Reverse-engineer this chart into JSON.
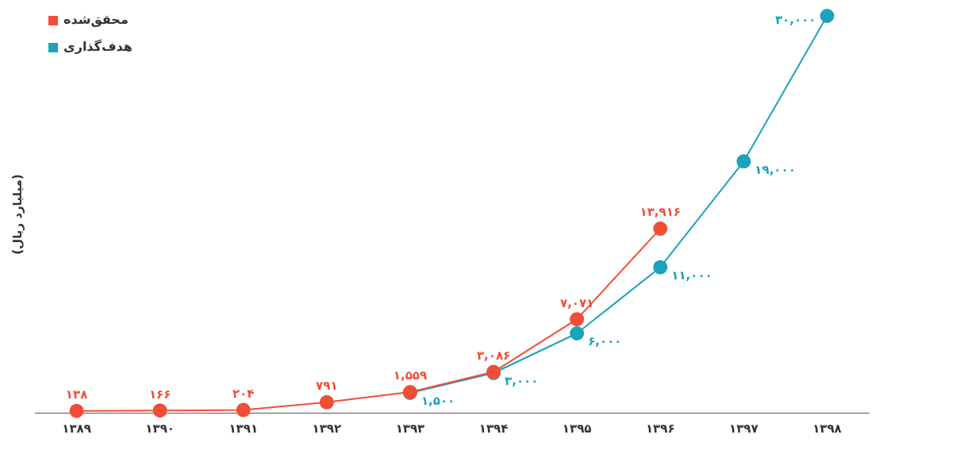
{
  "chart_data": {
    "type": "line",
    "ylabel": "(میلیارد ریال)",
    "categories": [
      "۱۳۸۹",
      "۱۳۹۰",
      "۱۳۹۱",
      "۱۳۹۲",
      "۱۳۹۳",
      "۱۳۹۴",
      "۱۳۹۵",
      "۱۳۹۶",
      "۱۳۹۷",
      "۱۳۹۸"
    ],
    "series": [
      {
        "name": "محقق‌شده",
        "color": "#f04e37",
        "values": [
          138,
          166,
          204,
          791,
          1559,
          3086,
          7071,
          13916,
          null,
          null
        ],
        "value_labels": [
          "۱۳۸",
          "۱۶۶",
          "۲۰۴",
          "۷۹۱",
          "۱,۵۵۹",
          "۳,۰۸۶",
          "۷,۰۷۱",
          "۱۳,۹۱۶",
          null,
          null
        ]
      },
      {
        "name": "هدف‌گذاری",
        "color": "#1ba3bb",
        "values": [
          null,
          null,
          null,
          null,
          1500,
          3000,
          6000,
          11000,
          19000,
          30000
        ],
        "value_labels": [
          null,
          null,
          null,
          null,
          "۱,۵۰۰",
          "۳,۰۰۰",
          "۶,۰۰۰",
          "۱۱,۰۰۰",
          "۱۹,۰۰۰",
          "۳۰,۰۰۰"
        ]
      }
    ],
    "legend": "top left",
    "grid": false,
    "marker": "circle",
    "line_style": "solid"
  }
}
